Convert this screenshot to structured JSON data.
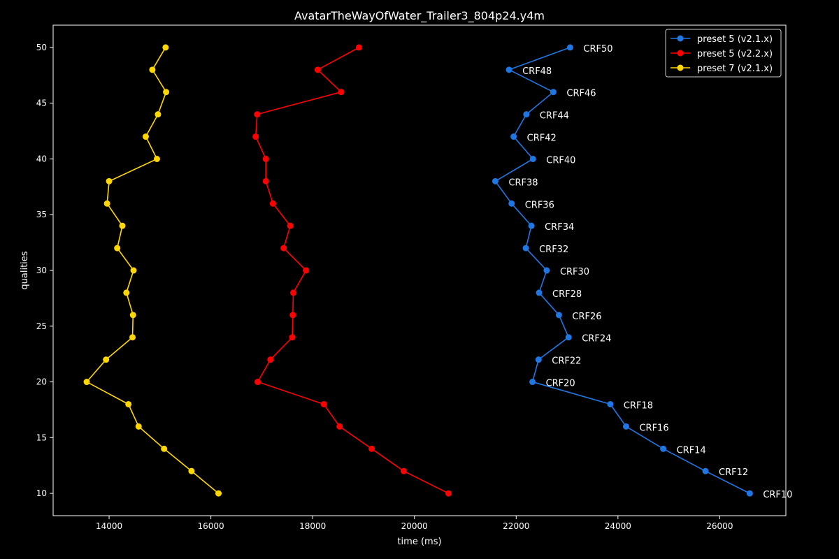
{
  "chart_data": {
    "type": "line",
    "title": "AvatarTheWayOfWater_Trailer3_804p24.y4m",
    "xlabel": "time (ms)",
    "ylabel": "qualities",
    "xlim": [
      12900,
      27300
    ],
    "ylim": [
      8,
      52
    ],
    "xticks": [
      14000,
      16000,
      18000,
      20000,
      22000,
      24000,
      26000
    ],
    "yticks": [
      10,
      15,
      20,
      25,
      30,
      35,
      40,
      45,
      50
    ],
    "grid": false,
    "legend": "top-right",
    "series": [
      {
        "name": "preset 5 (v2.1.x)",
        "color": "#1f77e4",
        "x": [
          26590,
          25720,
          24890,
          24160,
          23850,
          22320,
          22440,
          23030,
          22840,
          22450,
          22600,
          22190,
          22300,
          21910,
          21590,
          22330,
          21950,
          22200,
          22730,
          21860,
          23060
        ],
        "y": [
          10,
          12,
          14,
          16,
          18,
          20,
          22,
          24,
          26,
          28,
          30,
          32,
          34,
          36,
          38,
          40,
          42,
          44,
          46,
          48,
          50
        ],
        "labels": [
          "CRF10",
          "CRF12",
          "CRF14",
          "CRF16",
          "CRF18",
          "CRF20",
          "CRF22",
          "CRF24",
          "CRF26",
          "CRF28",
          "CRF30",
          "CRF32",
          "CRF34",
          "CRF36",
          "CRF38",
          "CRF40",
          "CRF42",
          "CRF44",
          "CRF46",
          "CRF48",
          "CRF50"
        ]
      },
      {
        "name": "preset 5 (v2.2.x)",
        "color": "#ff0000",
        "x": [
          20670,
          19790,
          19160,
          18530,
          18220,
          16920,
          17170,
          17600,
          17610,
          17620,
          17870,
          17430,
          17560,
          17220,
          17080,
          17080,
          16880,
          16910,
          18560,
          18100,
          18910
        ],
        "y": [
          10,
          12,
          14,
          16,
          18,
          20,
          22,
          24,
          26,
          28,
          30,
          32,
          34,
          36,
          38,
          40,
          42,
          44,
          46,
          48,
          50
        ]
      },
      {
        "name": "preset 7 (v2.1.x)",
        "color": "#ffd700",
        "x": [
          16150,
          15620,
          15080,
          14580,
          14380,
          13560,
          13940,
          14460,
          14470,
          14340,
          14480,
          14160,
          14260,
          13960,
          14000,
          14940,
          14720,
          14960,
          15120,
          14850,
          15110
        ],
        "y": [
          10,
          12,
          14,
          16,
          18,
          20,
          22,
          24,
          26,
          28,
          30,
          32,
          34,
          36,
          38,
          40,
          42,
          44,
          46,
          48,
          50
        ]
      }
    ]
  }
}
